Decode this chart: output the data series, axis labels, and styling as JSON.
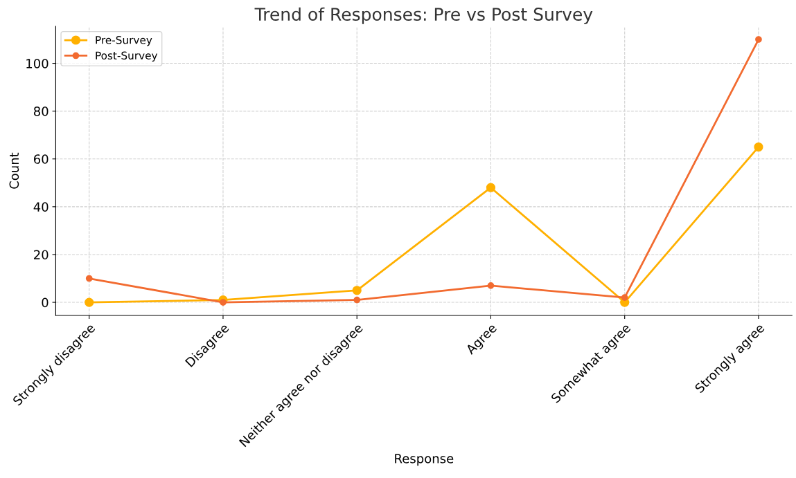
{
  "chart_data": {
    "type": "line",
    "title": "Trend of Responses: Pre vs Post Survey",
    "xlabel": "Response",
    "ylabel": "Count",
    "categories": [
      "Strongly disagree",
      "Disagree",
      "Neither agree nor disagree",
      "Agree",
      "Somewhat agree",
      "Strongly agree"
    ],
    "series": [
      {
        "name": "Pre-Survey",
        "color": "#ffb000",
        "values": [
          0,
          1,
          5,
          48,
          0,
          65
        ]
      },
      {
        "name": "Post-Survey",
        "color": "#f26b30",
        "values": [
          10,
          0,
          1,
          7,
          2,
          110
        ]
      }
    ],
    "ylim": [
      -5.5,
      115.5
    ],
    "yticks": [
      0,
      20,
      40,
      60,
      80,
      100
    ],
    "grid": true,
    "legend": "top left",
    "marker": "circle",
    "line_style": "solid"
  }
}
